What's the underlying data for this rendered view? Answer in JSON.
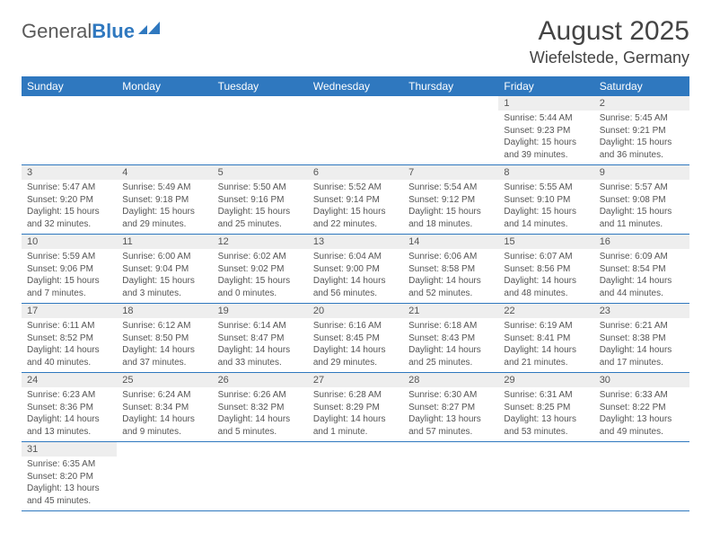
{
  "logo": {
    "text1": "General",
    "text2": "Blue"
  },
  "title": "August 2025",
  "location": "Wiefelstede, Germany",
  "colors": {
    "header_bg": "#2f78bf",
    "header_fg": "#ffffff",
    "daynum_bg": "#eeeeee",
    "text": "#555555",
    "page_bg": "#ffffff",
    "rule": "#2f78bf"
  },
  "day_headers": [
    "Sunday",
    "Monday",
    "Tuesday",
    "Wednesday",
    "Thursday",
    "Friday",
    "Saturday"
  ],
  "weeks": [
    [
      null,
      null,
      null,
      null,
      null,
      {
        "n": "1",
        "sunrise": "Sunrise: 5:44 AM",
        "sunset": "Sunset: 9:23 PM",
        "daylight": "Daylight: 15 hours and 39 minutes."
      },
      {
        "n": "2",
        "sunrise": "Sunrise: 5:45 AM",
        "sunset": "Sunset: 9:21 PM",
        "daylight": "Daylight: 15 hours and 36 minutes."
      }
    ],
    [
      {
        "n": "3",
        "sunrise": "Sunrise: 5:47 AM",
        "sunset": "Sunset: 9:20 PM",
        "daylight": "Daylight: 15 hours and 32 minutes."
      },
      {
        "n": "4",
        "sunrise": "Sunrise: 5:49 AM",
        "sunset": "Sunset: 9:18 PM",
        "daylight": "Daylight: 15 hours and 29 minutes."
      },
      {
        "n": "5",
        "sunrise": "Sunrise: 5:50 AM",
        "sunset": "Sunset: 9:16 PM",
        "daylight": "Daylight: 15 hours and 25 minutes."
      },
      {
        "n": "6",
        "sunrise": "Sunrise: 5:52 AM",
        "sunset": "Sunset: 9:14 PM",
        "daylight": "Daylight: 15 hours and 22 minutes."
      },
      {
        "n": "7",
        "sunrise": "Sunrise: 5:54 AM",
        "sunset": "Sunset: 9:12 PM",
        "daylight": "Daylight: 15 hours and 18 minutes."
      },
      {
        "n": "8",
        "sunrise": "Sunrise: 5:55 AM",
        "sunset": "Sunset: 9:10 PM",
        "daylight": "Daylight: 15 hours and 14 minutes."
      },
      {
        "n": "9",
        "sunrise": "Sunrise: 5:57 AM",
        "sunset": "Sunset: 9:08 PM",
        "daylight": "Daylight: 15 hours and 11 minutes."
      }
    ],
    [
      {
        "n": "10",
        "sunrise": "Sunrise: 5:59 AM",
        "sunset": "Sunset: 9:06 PM",
        "daylight": "Daylight: 15 hours and 7 minutes."
      },
      {
        "n": "11",
        "sunrise": "Sunrise: 6:00 AM",
        "sunset": "Sunset: 9:04 PM",
        "daylight": "Daylight: 15 hours and 3 minutes."
      },
      {
        "n": "12",
        "sunrise": "Sunrise: 6:02 AM",
        "sunset": "Sunset: 9:02 PM",
        "daylight": "Daylight: 15 hours and 0 minutes."
      },
      {
        "n": "13",
        "sunrise": "Sunrise: 6:04 AM",
        "sunset": "Sunset: 9:00 PM",
        "daylight": "Daylight: 14 hours and 56 minutes."
      },
      {
        "n": "14",
        "sunrise": "Sunrise: 6:06 AM",
        "sunset": "Sunset: 8:58 PM",
        "daylight": "Daylight: 14 hours and 52 minutes."
      },
      {
        "n": "15",
        "sunrise": "Sunrise: 6:07 AM",
        "sunset": "Sunset: 8:56 PM",
        "daylight": "Daylight: 14 hours and 48 minutes."
      },
      {
        "n": "16",
        "sunrise": "Sunrise: 6:09 AM",
        "sunset": "Sunset: 8:54 PM",
        "daylight": "Daylight: 14 hours and 44 minutes."
      }
    ],
    [
      {
        "n": "17",
        "sunrise": "Sunrise: 6:11 AM",
        "sunset": "Sunset: 8:52 PM",
        "daylight": "Daylight: 14 hours and 40 minutes."
      },
      {
        "n": "18",
        "sunrise": "Sunrise: 6:12 AM",
        "sunset": "Sunset: 8:50 PM",
        "daylight": "Daylight: 14 hours and 37 minutes."
      },
      {
        "n": "19",
        "sunrise": "Sunrise: 6:14 AM",
        "sunset": "Sunset: 8:47 PM",
        "daylight": "Daylight: 14 hours and 33 minutes."
      },
      {
        "n": "20",
        "sunrise": "Sunrise: 6:16 AM",
        "sunset": "Sunset: 8:45 PM",
        "daylight": "Daylight: 14 hours and 29 minutes."
      },
      {
        "n": "21",
        "sunrise": "Sunrise: 6:18 AM",
        "sunset": "Sunset: 8:43 PM",
        "daylight": "Daylight: 14 hours and 25 minutes."
      },
      {
        "n": "22",
        "sunrise": "Sunrise: 6:19 AM",
        "sunset": "Sunset: 8:41 PM",
        "daylight": "Daylight: 14 hours and 21 minutes."
      },
      {
        "n": "23",
        "sunrise": "Sunrise: 6:21 AM",
        "sunset": "Sunset: 8:38 PM",
        "daylight": "Daylight: 14 hours and 17 minutes."
      }
    ],
    [
      {
        "n": "24",
        "sunrise": "Sunrise: 6:23 AM",
        "sunset": "Sunset: 8:36 PM",
        "daylight": "Daylight: 14 hours and 13 minutes."
      },
      {
        "n": "25",
        "sunrise": "Sunrise: 6:24 AM",
        "sunset": "Sunset: 8:34 PM",
        "daylight": "Daylight: 14 hours and 9 minutes."
      },
      {
        "n": "26",
        "sunrise": "Sunrise: 6:26 AM",
        "sunset": "Sunset: 8:32 PM",
        "daylight": "Daylight: 14 hours and 5 minutes."
      },
      {
        "n": "27",
        "sunrise": "Sunrise: 6:28 AM",
        "sunset": "Sunset: 8:29 PM",
        "daylight": "Daylight: 14 hours and 1 minute."
      },
      {
        "n": "28",
        "sunrise": "Sunrise: 6:30 AM",
        "sunset": "Sunset: 8:27 PM",
        "daylight": "Daylight: 13 hours and 57 minutes."
      },
      {
        "n": "29",
        "sunrise": "Sunrise: 6:31 AM",
        "sunset": "Sunset: 8:25 PM",
        "daylight": "Daylight: 13 hours and 53 minutes."
      },
      {
        "n": "30",
        "sunrise": "Sunrise: 6:33 AM",
        "sunset": "Sunset: 8:22 PM",
        "daylight": "Daylight: 13 hours and 49 minutes."
      }
    ],
    [
      {
        "n": "31",
        "sunrise": "Sunrise: 6:35 AM",
        "sunset": "Sunset: 8:20 PM",
        "daylight": "Daylight: 13 hours and 45 minutes."
      },
      null,
      null,
      null,
      null,
      null,
      null
    ]
  ]
}
